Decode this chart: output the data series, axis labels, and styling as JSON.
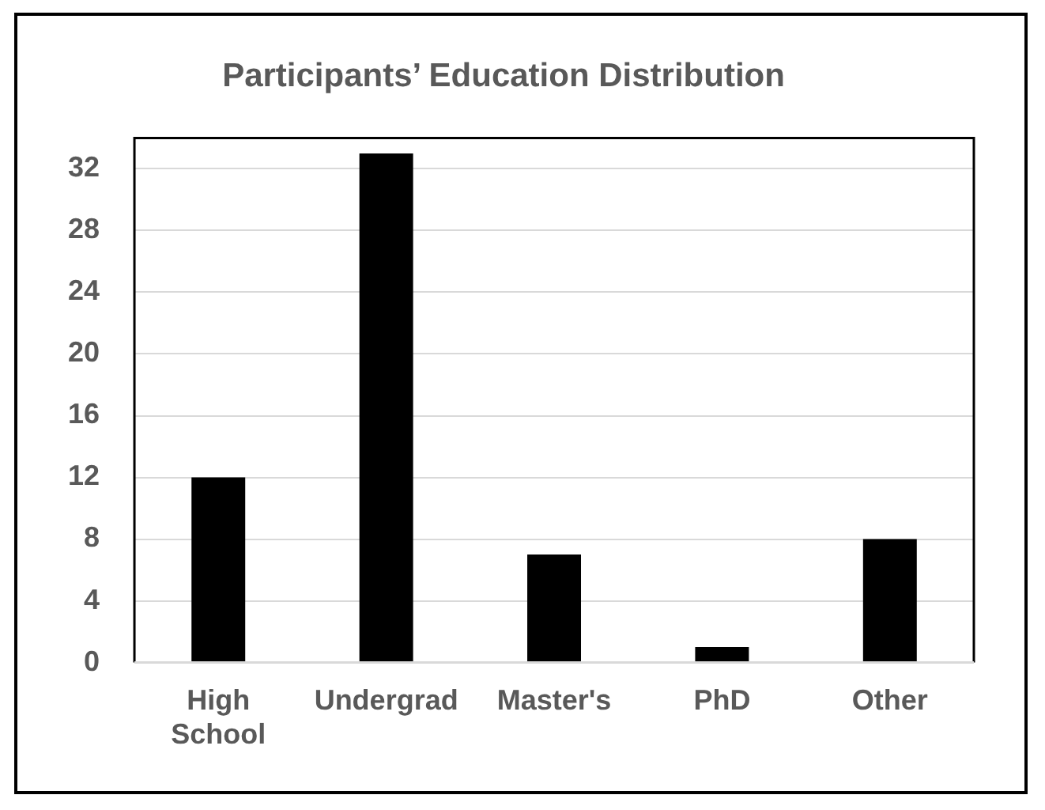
{
  "chart_data": {
    "type": "bar",
    "title": "Participants’ Education Distribution",
    "categories": [
      "High School",
      "Undergrad",
      "Master's",
      "PhD",
      "Other"
    ],
    "values": [
      12,
      33,
      7,
      1,
      8
    ],
    "color": "#000000",
    "ylim": [
      0,
      34
    ],
    "yticks": [
      0,
      4,
      8,
      12,
      16,
      20,
      24,
      28,
      32
    ],
    "grid": "y",
    "legend": false
  }
}
